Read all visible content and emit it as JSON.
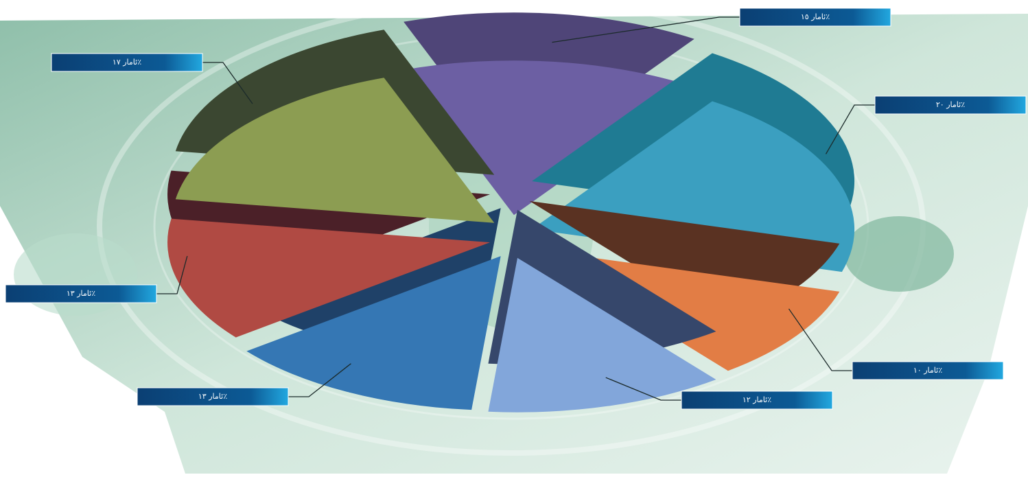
{
  "chart_data": {
    "type": "pie3d",
    "categories": [
      "ئامار ١٥٪",
      "ئامار ٢٠٪",
      "ئامار ١٠٪",
      "ئامار ١٢٪",
      "ئامار ١٣٪",
      "ئامار ١٣٪",
      "ئامار ١٧٪"
    ],
    "values": [
      15,
      20,
      10,
      12,
      13,
      13,
      17
    ],
    "colors": [
      "#6c5fa3",
      "#3b9fc0",
      "#e27d45",
      "#82a6da",
      "#3577b4",
      "#b04a43",
      "#8c9d52"
    ],
    "side_colors": [
      "#4f4578",
      "#1f7b93",
      "#5a3222",
      "#36476b",
      "#1f4168",
      "#4b2028",
      "#3b4731"
    ]
  }
}
